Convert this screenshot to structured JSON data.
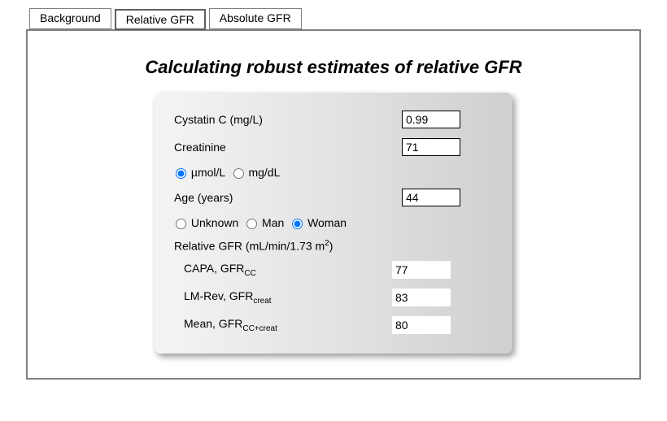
{
  "tabs": {
    "background": "Background",
    "relative": "Relative GFR",
    "absolute": "Absolute GFR"
  },
  "title": "Calculating robust estimates of relative GFR",
  "inputs": {
    "cystatin_label": "Cystatin C (mg/L)",
    "cystatin_value": "0.99",
    "creatinine_label": "Creatinine",
    "creatinine_value": "71",
    "unit_umol": "µmol/L",
    "unit_mgdl": "mg/dL",
    "age_label": "Age (years)",
    "age_value": "44",
    "sex_unknown": "Unknown",
    "sex_man": "Man",
    "sex_woman": "Woman"
  },
  "results_header_pre": "Relative GFR (mL/min/1.73 m",
  "results_header_post": ")",
  "results": {
    "capa_label_pre": "CAPA, GFR",
    "capa_sub": "CC",
    "capa_value": "77",
    "lmrev_label_pre": "LM-Rev, GFR",
    "lmrev_sub": "creat",
    "lmrev_value": "83",
    "mean_label_pre": "Mean, GFR",
    "mean_sub": "CC+creat",
    "mean_value": "80"
  }
}
